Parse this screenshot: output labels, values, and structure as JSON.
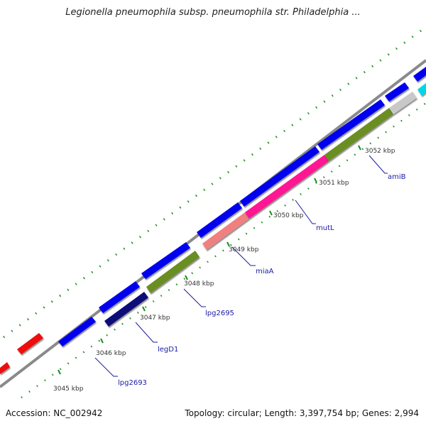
{
  "title": "Legionella pneumophila subsp. pneumophila str. Philadelphia ...",
  "footer": {
    "accession_label": "Accession:",
    "accession": "NC_002942",
    "topology_text": "Topology: circular; Length: 3,397,754 bp; Genes: 2,994"
  },
  "scale": {
    "ticks": [
      "3045 kbp",
      "3046 kbp",
      "3047 kbp",
      "3048 kbp",
      "3049 kbp",
      "3050 kbp",
      "3051 kbp",
      "3052 kbp"
    ]
  },
  "gene_labels": [
    "lpg2693",
    "legD1",
    "lpg2695",
    "miaA",
    "mutL",
    "amiB"
  ],
  "colors": {
    "cds_blue": "#0000ee",
    "dark_navy": "#0a0a7a",
    "red": "#ee1111",
    "olive": "#6b8e23",
    "magenta": "#ff1493",
    "salmon": "#f08080",
    "gray": "#c8c8c8",
    "cyan": "#00d8e8",
    "backbone": "#7f7f7f",
    "dots": "#1e8c1e"
  }
}
